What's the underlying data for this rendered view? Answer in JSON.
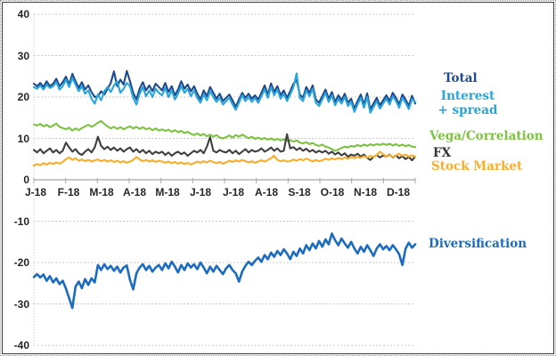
{
  "chart_data": {
    "type": "line",
    "title": "",
    "x_labels": [
      "J-18",
      "F-18",
      "M-18",
      "A-18",
      "M-18",
      "J-18",
      "J-18",
      "A-18",
      "S-18",
      "O-18",
      "N-18",
      "D-18"
    ],
    "y_ticks": [
      40,
      30,
      20,
      10,
      0,
      -10,
      -20,
      -30,
      -40
    ],
    "ylim": [
      -40,
      40
    ],
    "grid": "horizontal dotted gridlines every 10 units, dotted left axis, solid zero axis with month tick marks",
    "legend_position": "right",
    "axis_color": "#a6a6a6",
    "grid_color": "#c8c8c8",
    "series": [
      {
        "name": "Total",
        "color": "#1C4A8C",
        "legend_lines": [
          "Total"
        ],
        "values": [
          23.2,
          22.6,
          23.4,
          22.4,
          23.8,
          22.6,
          23.2,
          24.4,
          22.6,
          23.6,
          24.9,
          23.0,
          25.6,
          23.8,
          22.2,
          23.6,
          21.8,
          22.8,
          21.2,
          20.0,
          20.2,
          21.4,
          20.6,
          22.0,
          23.4,
          26.2,
          22.6,
          24.2,
          23.0,
          26.3,
          23.8,
          21.0,
          19.4,
          22.0,
          23.6,
          21.6,
          22.8,
          21.4,
          23.2,
          22.4,
          21.6,
          23.4,
          21.2,
          22.6,
          20.4,
          21.8,
          23.8,
          22.0,
          23.0,
          21.4,
          22.6,
          20.8,
          19.4,
          21.6,
          20.2,
          22.4,
          21.0,
          19.6,
          20.8,
          19.0,
          19.8,
          20.6,
          19.2,
          17.6,
          19.4,
          21.0,
          19.8,
          20.8,
          19.6,
          20.4,
          19.4,
          21.0,
          22.8,
          20.6,
          23.3,
          21.2,
          22.6,
          20.4,
          21.6,
          19.8,
          21.4,
          23.2,
          24.1,
          20.6,
          19.8,
          22.4,
          21.0,
          22.8,
          19.4,
          18.6,
          20.2,
          21.8,
          19.6,
          21.2,
          18.8,
          20.4,
          19.2,
          20.8,
          18.6,
          19.6,
          17.2,
          19.0,
          20.6,
          18.2,
          20.9,
          17.0,
          18.4,
          19.8,
          18.0,
          19.2,
          20.4,
          19.0,
          21.0,
          19.8,
          18.2,
          20.6,
          19.4,
          17.9,
          20.3,
          18.4
        ]
      },
      {
        "name": "Interest + spread",
        "color": "#27A5DC",
        "legend_lines": [
          "Interest",
          "+ spread"
        ],
        "values": [
          22.4,
          22.0,
          22.8,
          21.8,
          23.0,
          22.2,
          22.6,
          23.6,
          21.8,
          22.6,
          24.2,
          22.4,
          24.6,
          23.0,
          21.4,
          22.6,
          20.8,
          21.6,
          19.6,
          18.4,
          20.6,
          19.2,
          21.4,
          22.4,
          21.2,
          22.8,
          23.8,
          21.0,
          22.0,
          23.4,
          22.6,
          19.8,
          18.2,
          20.8,
          22.4,
          20.2,
          21.6,
          20.0,
          22.0,
          21.0,
          20.4,
          22.2,
          20.0,
          21.6,
          19.4,
          20.8,
          22.6,
          21.0,
          22.0,
          20.2,
          21.6,
          19.8,
          18.6,
          20.6,
          19.2,
          21.4,
          20.0,
          18.8,
          19.8,
          18.2,
          19.0,
          19.8,
          18.2,
          16.9,
          18.6,
          20.4,
          19.0,
          20.0,
          18.8,
          19.8,
          18.6,
          20.2,
          21.8,
          19.8,
          22.4,
          20.4,
          21.8,
          19.6,
          20.8,
          19.0,
          20.6,
          22.4,
          25.7,
          19.8,
          19.0,
          21.6,
          20.2,
          22.0,
          18.6,
          17.8,
          19.4,
          21.0,
          18.8,
          20.4,
          18.0,
          19.6,
          18.4,
          20.0,
          17.8,
          18.8,
          16.4,
          18.2,
          19.8,
          17.4,
          20.0,
          16.2,
          17.6,
          19.0,
          17.2,
          18.4,
          19.6,
          18.2,
          20.2,
          19.0,
          17.4,
          19.8,
          18.6,
          17.1,
          19.5,
          18.8
        ]
      },
      {
        "name": "Vega/Correlation",
        "color": "#7DC242",
        "legend_lines": [
          "Vega/Correlation"
        ],
        "values": [
          13.4,
          13.1,
          13.5,
          12.9,
          13.3,
          12.7,
          13.1,
          13.6,
          12.8,
          12.5,
          12.2,
          12.6,
          11.9,
          12.4,
          12.0,
          12.5,
          12.9,
          13.3,
          12.8,
          13.2,
          13.8,
          14.2,
          13.5,
          12.9,
          12.4,
          12.8,
          12.3,
          12.7,
          12.2,
          12.6,
          12.9,
          12.4,
          12.8,
          12.3,
          12.7,
          12.2,
          12.5,
          12.0,
          12.4,
          11.9,
          12.2,
          11.8,
          12.1,
          11.6,
          12.0,
          11.5,
          11.8,
          11.3,
          11.6,
          11.1,
          10.8,
          11.2,
          10.7,
          11.1,
          10.5,
          10.9,
          10.4,
          10.8,
          10.2,
          10.0,
          10.3,
          10.7,
          10.2,
          10.8,
          10.4,
          10.9,
          10.5,
          10.0,
          10.4,
          9.9,
          10.2,
          9.8,
          10.1,
          9.7,
          10.0,
          9.6,
          9.9,
          9.5,
          9.8,
          9.4,
          9.6,
          9.2,
          9.5,
          9.0,
          8.8,
          9.1,
          8.6,
          8.9,
          8.4,
          8.2,
          8.5,
          8.0,
          7.8,
          7.4,
          7.0,
          7.3,
          7.7,
          8.0,
          7.8,
          8.2,
          8.0,
          8.4,
          8.1,
          8.5,
          8.2,
          8.6,
          8.3,
          8.6,
          8.4,
          8.7,
          8.4,
          8.7,
          8.3,
          8.6,
          8.2,
          8.5,
          8.1,
          8.4,
          8.0,
          7.9
        ]
      },
      {
        "name": "FX",
        "color": "#404040",
        "legend_lines": [
          "FX"
        ],
        "values": [
          7.2,
          6.6,
          7.4,
          6.4,
          7.0,
          7.6,
          6.6,
          7.2,
          6.4,
          7.0,
          9.0,
          7.8,
          6.8,
          7.4,
          6.4,
          6.0,
          6.8,
          7.4,
          6.6,
          7.8,
          10.4,
          8.2,
          7.4,
          8.0,
          7.2,
          7.8,
          7.0,
          7.6,
          6.8,
          7.4,
          7.8,
          6.8,
          7.4,
          6.6,
          7.2,
          6.4,
          7.0,
          6.2,
          6.8,
          6.4,
          6.8,
          6.0,
          6.6,
          5.8,
          6.4,
          6.8,
          6.2,
          6.6,
          5.8,
          6.4,
          7.0,
          6.6,
          7.2,
          6.4,
          8.0,
          10.3,
          7.0,
          6.6,
          7.2,
          6.8,
          6.6,
          7.2,
          6.4,
          7.0,
          6.2,
          6.8,
          7.4,
          6.6,
          7.2,
          6.8,
          7.0,
          7.6,
          6.8,
          7.2,
          7.8,
          7.0,
          7.6,
          6.8,
          7.0,
          11.0,
          7.6,
          7.9,
          7.2,
          7.7,
          7.0,
          7.5,
          6.8,
          7.2,
          6.6,
          7.0,
          6.6,
          7.0,
          6.3,
          6.8,
          6.1,
          6.6,
          5.9,
          6.4,
          5.6,
          6.1,
          5.8,
          6.3,
          5.6,
          6.1,
          5.3,
          4.8,
          5.5,
          6.0,
          5.4,
          5.9,
          5.6,
          6.1,
          5.4,
          5.9,
          5.2,
          5.7,
          5.0,
          5.5,
          4.7,
          5.6
        ]
      },
      {
        "name": "Stock Market",
        "color": "#FAAD2A",
        "legend_lines": [
          "Stock Market"
        ],
        "values": [
          3.4,
          3.8,
          3.5,
          4.0,
          3.7,
          4.1,
          3.8,
          4.2,
          3.9,
          4.3,
          5.0,
          5.4,
          4.8,
          5.2,
          4.6,
          4.9,
          4.5,
          4.8,
          4.4,
          4.7,
          4.9,
          4.5,
          4.8,
          4.4,
          4.7,
          4.3,
          4.6,
          4.2,
          4.5,
          4.1,
          4.4,
          4.8,
          5.5,
          4.9,
          4.5,
          4.8,
          4.4,
          4.7,
          4.3,
          4.6,
          4.4,
          4.1,
          4.4,
          4.0,
          4.3,
          3.9,
          4.2,
          3.8,
          4.1,
          3.7,
          4.0,
          4.4,
          4.1,
          4.5,
          4.2,
          4.6,
          4.3,
          4.0,
          4.3,
          3.9,
          4.2,
          4.6,
          4.3,
          4.7,
          4.4,
          4.8,
          4.5,
          4.2,
          4.5,
          4.1,
          4.4,
          4.7,
          4.4,
          4.8,
          5.2,
          5.8,
          4.8,
          4.5,
          4.7,
          4.4,
          4.5,
          4.9,
          4.6,
          5.0,
          4.7,
          5.1,
          4.8,
          4.4,
          4.8,
          4.5,
          4.7,
          5.1,
          4.8,
          5.2,
          4.9,
          5.3,
          5.0,
          5.4,
          5.1,
          5.5,
          5.2,
          5.5,
          5.3,
          5.7,
          5.4,
          5.8,
          5.5,
          6.0,
          6.8,
          6.2,
          5.6,
          6.0,
          5.5,
          5.9,
          6.3,
          5.8,
          6.1,
          5.6,
          5.9,
          5.6
        ]
      },
      {
        "name": "Diversification",
        "color": "#1B6CC1",
        "legend_lines": [
          "Diversification"
        ],
        "values": [
          -23.5,
          -22.8,
          -23.6,
          -22.9,
          -24.4,
          -23.3,
          -24.8,
          -23.8,
          -25.2,
          -24.4,
          -26.3,
          -28.6,
          -31.0,
          -25.8,
          -24.6,
          -26.2,
          -24.0,
          -25.4,
          -23.8,
          -24.8,
          -20.6,
          -21.8,
          -20.4,
          -21.6,
          -20.8,
          -22.0,
          -21.0,
          -22.4,
          -21.2,
          -20.7,
          -24.2,
          -26.5,
          -22.6,
          -21.2,
          -20.4,
          -21.8,
          -20.8,
          -22.2,
          -21.2,
          -20.6,
          -21.8,
          -20.2,
          -21.4,
          -19.8,
          -21.0,
          -22.4,
          -20.6,
          -21.8,
          -20.2,
          -21.2,
          -20.4,
          -21.6,
          -20.0,
          -21.2,
          -22.6,
          -21.0,
          -22.2,
          -20.8,
          -21.8,
          -22.8,
          -21.4,
          -20.6,
          -21.8,
          -22.6,
          -24.6,
          -22.2,
          -20.8,
          -19.8,
          -20.6,
          -19.6,
          -18.8,
          -19.8,
          -18.2,
          -19.2,
          -17.6,
          -18.6,
          -17.2,
          -18.2,
          -16.8,
          -17.8,
          -19.2,
          -17.4,
          -18.4,
          -16.6,
          -17.8,
          -15.8,
          -17.0,
          -15.4,
          -16.6,
          -14.8,
          -16.2,
          -14.4,
          -15.6,
          -13.0,
          -14.6,
          -15.8,
          -14.2,
          -15.4,
          -16.4,
          -15.0,
          -16.6,
          -17.8,
          -16.2,
          -17.4,
          -15.8,
          -17.0,
          -18.4,
          -16.6,
          -15.6,
          -16.8,
          -16.0,
          -17.0,
          -15.8,
          -16.8,
          -18.0,
          -20.6,
          -16.6,
          -15.2,
          -16.4,
          -15.6
        ]
      }
    ]
  }
}
